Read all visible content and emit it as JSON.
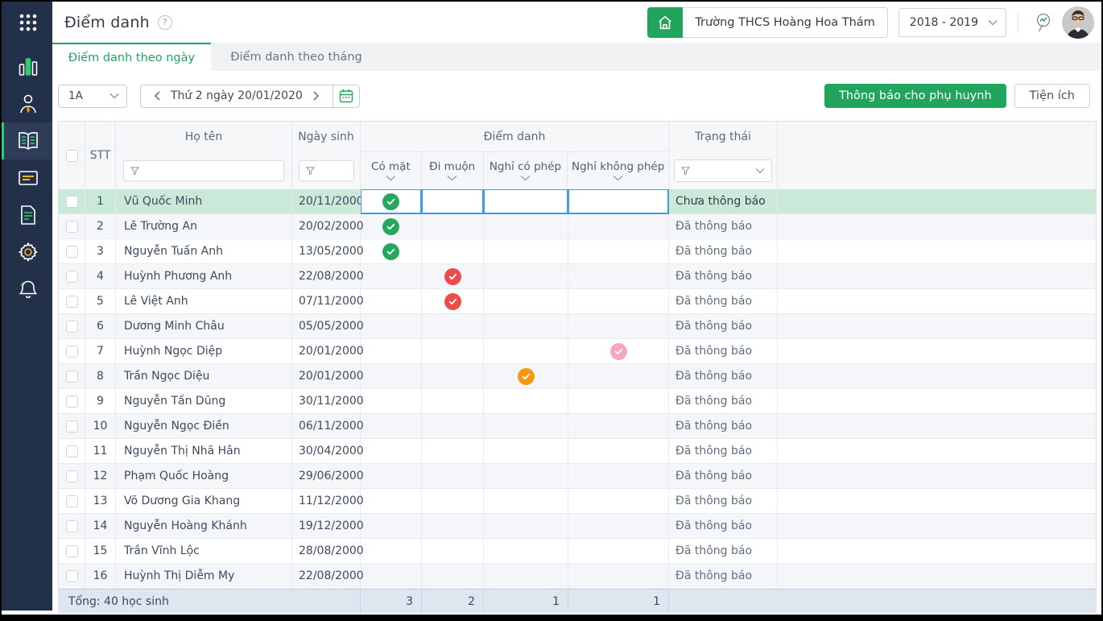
{
  "header": {
    "title": "Điểm danh",
    "help": "?",
    "school": "Trường THCS Hoàng Hoa Thám",
    "school_year": "2018 - 2019"
  },
  "sidebar": {
    "items": [
      "apps-grid-icon",
      "bar-chart-icon",
      "teacher-icon",
      "open-book-icon",
      "id-card-icon",
      "document-icon",
      "gear-icon",
      "bell-icon"
    ],
    "active_item": "open-book-icon"
  },
  "tabs": [
    {
      "label": "Điểm danh theo ngày",
      "active": true
    },
    {
      "label": "Điểm danh theo tháng",
      "active": false
    }
  ],
  "toolbar": {
    "class_selected": "1A",
    "date_label": "Thứ 2 ngày 20/01/2020",
    "notify_button": "Thông báo cho phụ huynh",
    "utilities_button": "Tiện ích"
  },
  "table": {
    "columns": {
      "stt": "STT",
      "name": "Họ tên",
      "dob": "Ngày sinh",
      "attendance_group": "Điểm danh",
      "attendance": [
        "Có mặt",
        "Đi muộn",
        "Nghỉ có phép",
        "Nghỉ không phép"
      ],
      "status": "Trạng thái"
    },
    "rows": [
      {
        "stt": "1",
        "name": "Vũ Quốc Minh",
        "dob": "20/11/2000",
        "attendance": "present",
        "status": "Chưa thông báo",
        "selected": true
      },
      {
        "stt": "2",
        "name": "Lê Trường An",
        "dob": "20/02/2000",
        "attendance": "present",
        "status": "Đã thông báo"
      },
      {
        "stt": "3",
        "name": "Nguyễn Tuấn Anh",
        "dob": "13/05/2000",
        "attendance": "present",
        "status": "Đã thông báo"
      },
      {
        "stt": "4",
        "name": "Huỳnh Phương Anh",
        "dob": "22/08/2000",
        "attendance": "late",
        "status": "Đã thông báo"
      },
      {
        "stt": "5",
        "name": "Lê Việt Anh",
        "dob": "07/11/2000",
        "attendance": "late",
        "status": "Đã thông báo"
      },
      {
        "stt": "6",
        "name": "Dương Minh Châu",
        "dob": "05/05/2000",
        "attendance": null,
        "status": "Đã thông báo"
      },
      {
        "stt": "7",
        "name": "Huỳnh Ngọc Diệp",
        "dob": "20/01/2000",
        "attendance": "unexcused",
        "status": "Đã thông báo"
      },
      {
        "stt": "8",
        "name": "Trần Ngọc Diệu",
        "dob": "20/01/2000",
        "attendance": "excused",
        "status": "Đã thông báo"
      },
      {
        "stt": "9",
        "name": "Nguyễn Tấn Dũng",
        "dob": "30/11/2000",
        "attendance": null,
        "status": "Đã thông báo"
      },
      {
        "stt": "10",
        "name": "Nguyễn Ngọc Điền",
        "dob": "06/11/2000",
        "attendance": null,
        "status": "Đã thông báo"
      },
      {
        "stt": "11",
        "name": "Nguyễn Thị Nhã Hân",
        "dob": "30/04/2000",
        "attendance": null,
        "status": "Đã thông báo"
      },
      {
        "stt": "12",
        "name": "Phạm Quốc Hoàng",
        "dob": "29/06/2000",
        "attendance": null,
        "status": "Đã thông báo"
      },
      {
        "stt": "13",
        "name": "Võ Dương Gia Khang",
        "dob": "11/12/2000",
        "attendance": null,
        "status": "Đã thông báo"
      },
      {
        "stt": "14",
        "name": "Nguyễn Hoàng Khánh",
        "dob": "19/12/2000",
        "attendance": null,
        "status": "Đã thông báo"
      },
      {
        "stt": "15",
        "name": "Trần Vĩnh Lộc",
        "dob": "28/08/2000",
        "attendance": null,
        "status": "Đã thông báo"
      },
      {
        "stt": "16",
        "name": "Huỳnh Thị Diễm My",
        "dob": "22/08/2000",
        "attendance": null,
        "status": "Đã thông báo"
      }
    ],
    "footer": {
      "total_label": "Tổng: 40 học sinh",
      "totals": [
        "3",
        "2",
        "1",
        "1"
      ]
    }
  },
  "colors": {
    "accent_green": "#21a55e",
    "sidebar_navy": "#233049",
    "selected_row_green": "#cbe9d8",
    "focus_blue": "#3f9be3",
    "badge_present": "#25a75f",
    "badge_late": "#ee4b4b",
    "badge_excused": "#f5980f",
    "badge_unexcused": "#f7a6c1"
  }
}
